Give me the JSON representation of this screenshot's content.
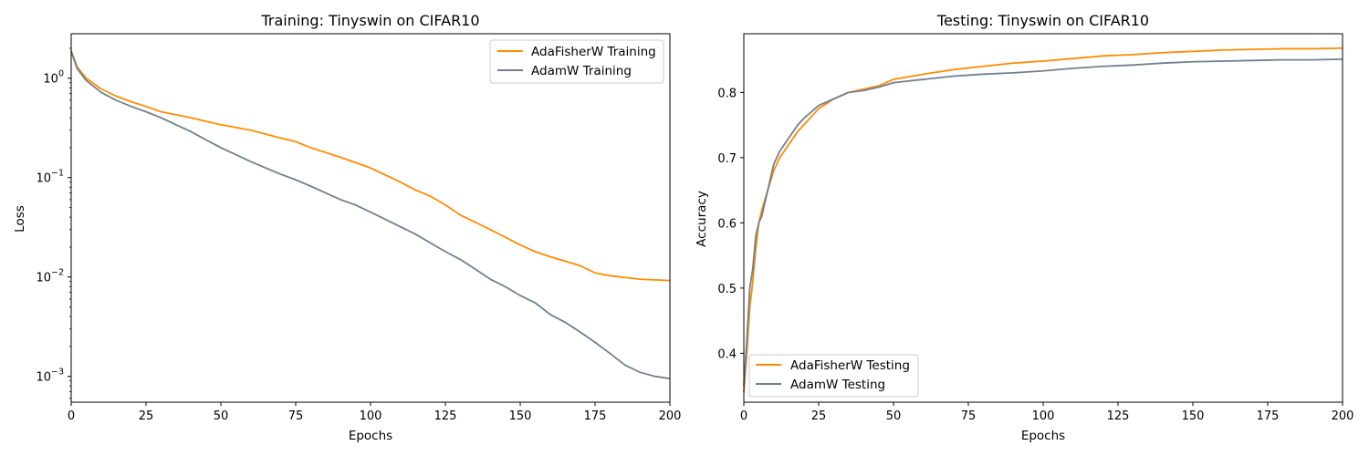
{
  "chart_data": [
    {
      "type": "line",
      "title": "Training: Tinyswin on CIFAR10",
      "xlabel": "Epochs",
      "ylabel": "Loss",
      "yscale": "log",
      "xlim": [
        0,
        200
      ],
      "ylim": [
        0.00055,
        2.8
      ],
      "xticks": [
        0,
        25,
        50,
        75,
        100,
        125,
        150,
        175,
        200
      ],
      "xtick_labels": [
        "0",
        "25",
        "50",
        "75",
        "100",
        "125",
        "150",
        "175",
        "200"
      ],
      "yticks": [
        0.001,
        0.01,
        0.1,
        1
      ],
      "ytick_labels": [
        "10",
        "10",
        "10",
        "10"
      ],
      "ytick_exps": [
        "−3",
        "−2",
        "−1",
        "0"
      ],
      "legend_loc": "upper right",
      "grid": false,
      "series": [
        {
          "name": "AdaFisherW Training",
          "color": "#ff8c00",
          "x": [
            0,
            2,
            5,
            10,
            15,
            20,
            25,
            30,
            40,
            50,
            60,
            70,
            75,
            80,
            90,
            100,
            110,
            115,
            120,
            125,
            130,
            140,
            150,
            155,
            160,
            170,
            175,
            180,
            190,
            200
          ],
          "y": [
            1.9,
            1.3,
            1.0,
            0.78,
            0.66,
            0.58,
            0.52,
            0.46,
            0.4,
            0.34,
            0.3,
            0.25,
            0.23,
            0.2,
            0.16,
            0.125,
            0.09,
            0.075,
            0.065,
            0.053,
            0.042,
            0.03,
            0.021,
            0.018,
            0.016,
            0.013,
            0.011,
            0.0103,
            0.0095,
            0.0092
          ]
        },
        {
          "name": "AdamW Training",
          "color": "#708090",
          "x": [
            0,
            2,
            5,
            10,
            15,
            20,
            25,
            30,
            35,
            40,
            45,
            50,
            55,
            60,
            65,
            70,
            75,
            80,
            85,
            90,
            95,
            100,
            105,
            110,
            115,
            120,
            125,
            130,
            135,
            140,
            145,
            150,
            155,
            160,
            165,
            170,
            175,
            180,
            185,
            190,
            195,
            200
          ],
          "y": [
            1.85,
            1.25,
            0.95,
            0.72,
            0.6,
            0.52,
            0.46,
            0.4,
            0.34,
            0.29,
            0.24,
            0.2,
            0.17,
            0.145,
            0.125,
            0.108,
            0.095,
            0.082,
            0.07,
            0.06,
            0.053,
            0.045,
            0.038,
            0.032,
            0.027,
            0.022,
            0.018,
            0.015,
            0.012,
            0.0095,
            0.008,
            0.0065,
            0.0055,
            0.0042,
            0.0035,
            0.0028,
            0.0022,
            0.0017,
            0.0013,
            0.0011,
            0.001,
            0.00095
          ]
        }
      ]
    },
    {
      "type": "line",
      "title": "Testing: Tinyswin on CIFAR10",
      "xlabel": "Epochs",
      "ylabel": "Accuracy",
      "xlim": [
        0,
        200
      ],
      "ylim": [
        0.325,
        0.89
      ],
      "xticks": [
        0,
        25,
        50,
        75,
        100,
        125,
        150,
        175,
        200
      ],
      "xtick_labels": [
        "0",
        "25",
        "50",
        "75",
        "100",
        "125",
        "150",
        "175",
        "200"
      ],
      "yticks": [
        0.4,
        0.5,
        0.6,
        0.7,
        0.8
      ],
      "ytick_labels": [
        "0.4",
        "0.5",
        "0.6",
        "0.7",
        "0.8"
      ],
      "legend_loc": "lower left",
      "grid": false,
      "series": [
        {
          "name": "AdaFisherW Testing",
          "color": "#ff8c00",
          "x": [
            0,
            1,
            2,
            3,
            4,
            5,
            6,
            8,
            10,
            12,
            15,
            18,
            20,
            25,
            30,
            35,
            40,
            45,
            50,
            60,
            70,
            80,
            90,
            100,
            110,
            120,
            130,
            140,
            150,
            160,
            170,
            180,
            190,
            200
          ],
          "y": [
            0.34,
            0.4,
            0.47,
            0.51,
            0.56,
            0.6,
            0.62,
            0.65,
            0.68,
            0.7,
            0.72,
            0.74,
            0.75,
            0.775,
            0.79,
            0.8,
            0.805,
            0.81,
            0.82,
            0.828,
            0.835,
            0.84,
            0.845,
            0.848,
            0.852,
            0.856,
            0.858,
            0.861,
            0.863,
            0.865,
            0.866,
            0.867,
            0.867,
            0.868
          ]
        },
        {
          "name": "AdamW Testing",
          "color": "#708090",
          "x": [
            0,
            1,
            2,
            3,
            4,
            5,
            6,
            8,
            10,
            12,
            15,
            18,
            20,
            25,
            30,
            35,
            40,
            45,
            50,
            60,
            70,
            80,
            90,
            100,
            110,
            120,
            130,
            140,
            150,
            160,
            170,
            180,
            190,
            200
          ],
          "y": [
            0.35,
            0.42,
            0.5,
            0.53,
            0.58,
            0.6,
            0.61,
            0.65,
            0.69,
            0.71,
            0.73,
            0.75,
            0.76,
            0.78,
            0.79,
            0.8,
            0.803,
            0.808,
            0.815,
            0.82,
            0.825,
            0.828,
            0.83,
            0.833,
            0.837,
            0.84,
            0.842,
            0.845,
            0.847,
            0.848,
            0.849,
            0.85,
            0.85,
            0.851
          ]
        }
      ]
    }
  ]
}
